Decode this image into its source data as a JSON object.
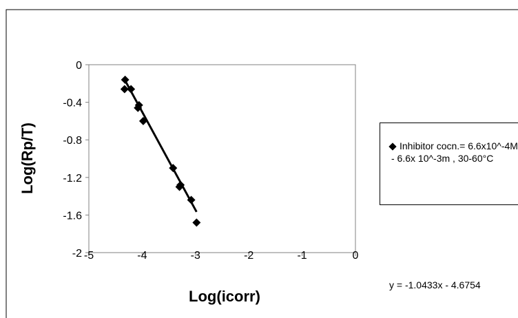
{
  "chart_data": {
    "type": "scatter",
    "title": "",
    "xlabel": "Log(icorr)",
    "ylabel": "Log(Rp/T)",
    "xlim": [
      -5,
      0
    ],
    "ylim": [
      -2,
      0
    ],
    "x_ticks": [
      "-5",
      "-4",
      "-3",
      "-2",
      "-1",
      "0"
    ],
    "y_ticks": [
      "0",
      "-0.4",
      "-0.8",
      "-1.2",
      "-1.6",
      "-2"
    ],
    "grid": false,
    "legend_position": "right",
    "series": [
      {
        "name": "Inhibitor cocn.= 6.6x10^-4M - 6.6x 10^-3m , 30-60°C",
        "marker": "diamond",
        "color": "#000000",
        "points": [
          {
            "x": -4.32,
            "y": -0.16
          },
          {
            "x": -4.33,
            "y": -0.26
          },
          {
            "x": -4.21,
            "y": -0.26
          },
          {
            "x": -4.06,
            "y": -0.43
          },
          {
            "x": -4.08,
            "y": -0.46
          },
          {
            "x": -3.98,
            "y": -0.6
          },
          {
            "x": -3.42,
            "y": -1.1
          },
          {
            "x": -3.3,
            "y": -1.3
          },
          {
            "x": -3.28,
            "y": -1.28
          },
          {
            "x": -3.08,
            "y": -1.44
          },
          {
            "x": -2.98,
            "y": -1.68
          }
        ]
      }
    ],
    "trendline": {
      "type": "linear",
      "x_range": [
        -4.33,
        -2.98
      ],
      "equation": "y = -1.0433x - 4.6754",
      "slope": -1.0433,
      "intercept": -4.6754
    }
  }
}
